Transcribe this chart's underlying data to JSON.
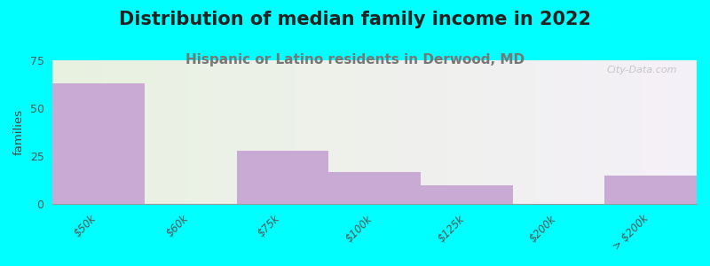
{
  "title": "Distribution of median family income in 2022",
  "subtitle": "Hispanic or Latino residents in Derwood, MD",
  "categories": [
    "$50k",
    "$60k",
    "$75k",
    "$100k",
    "$125k",
    "$200k",
    "> $200k"
  ],
  "values": [
    63,
    0,
    28,
    17,
    10,
    0,
    15
  ],
  "bar_color": "#c9aad4",
  "ylabel": "families",
  "ylim": [
    0,
    75
  ],
  "yticks": [
    0,
    25,
    50,
    75
  ],
  "background_color": "#00ffff",
  "plot_bg_color": "#e8f2e0",
  "title_fontsize": 15,
  "subtitle_fontsize": 11,
  "subtitle_color": "#777777",
  "watermark": "City-Data.com"
}
